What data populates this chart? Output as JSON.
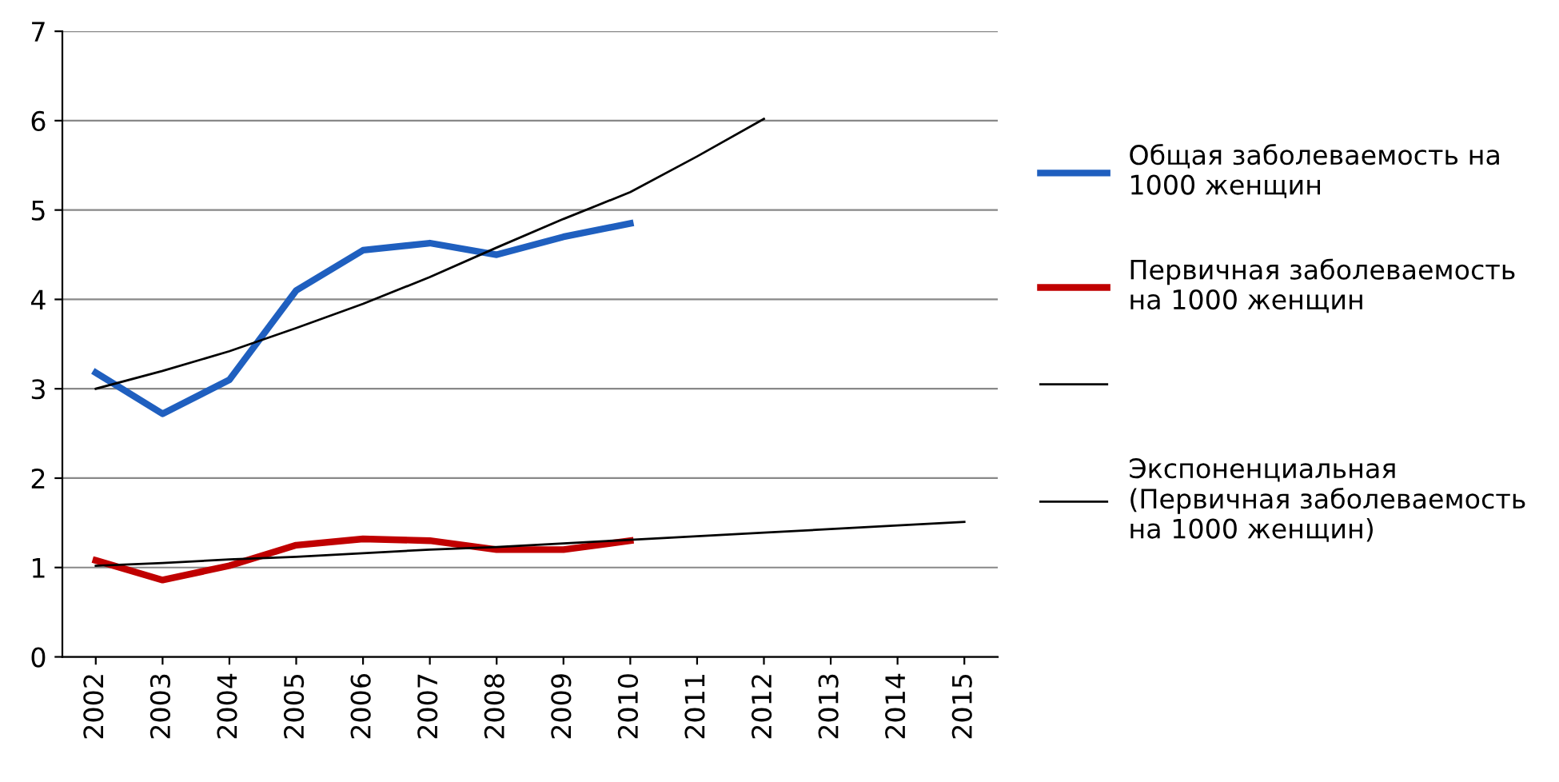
{
  "chart_data": {
    "type": "line",
    "categories": [
      "2002",
      "2003",
      "2004",
      "2005",
      "2006",
      "2007",
      "2008",
      "2009",
      "2010",
      "2011",
      "2012",
      "2013",
      "2014",
      "2015"
    ],
    "series": [
      {
        "name": "Общая заболеваемость на 1000 женщин",
        "color": "#1f5fbf",
        "values": [
          3.18,
          2.72,
          3.1,
          4.1,
          4.55,
          4.63,
          4.5,
          4.7,
          4.85,
          null,
          null,
          null,
          null,
          null
        ]
      },
      {
        "name": "Первичная заболеваемость на 1000 женщин",
        "color": "#c00000",
        "values": [
          1.08,
          0.86,
          1.02,
          1.25,
          1.32,
          1.3,
          1.2,
          1.2,
          1.3,
          null,
          null,
          null,
          null,
          null
        ]
      },
      {
        "color": "#000000",
        "values": [
          3.0,
          3.2,
          3.42,
          3.68,
          3.95,
          4.25,
          4.58,
          4.9,
          5.2,
          5.6,
          6.02,
          null,
          null,
          null
        ]
      },
      {
        "name": "Экспоненциальная (Первичная заболеваемость на 1000 женщин)",
        "color": "#000000",
        "values": [
          1.02,
          1.05,
          1.09,
          1.12,
          1.16,
          1.2,
          1.23,
          1.27,
          1.31,
          1.35,
          1.39,
          1.43,
          1.47,
          1.51
        ]
      }
    ],
    "ylim": [
      0,
      7
    ],
    "yticks": [
      0,
      1,
      2,
      3,
      4,
      5,
      6,
      7
    ],
    "grid": "y",
    "legend": "right",
    "marker": "none",
    "line_style": "solid"
  }
}
